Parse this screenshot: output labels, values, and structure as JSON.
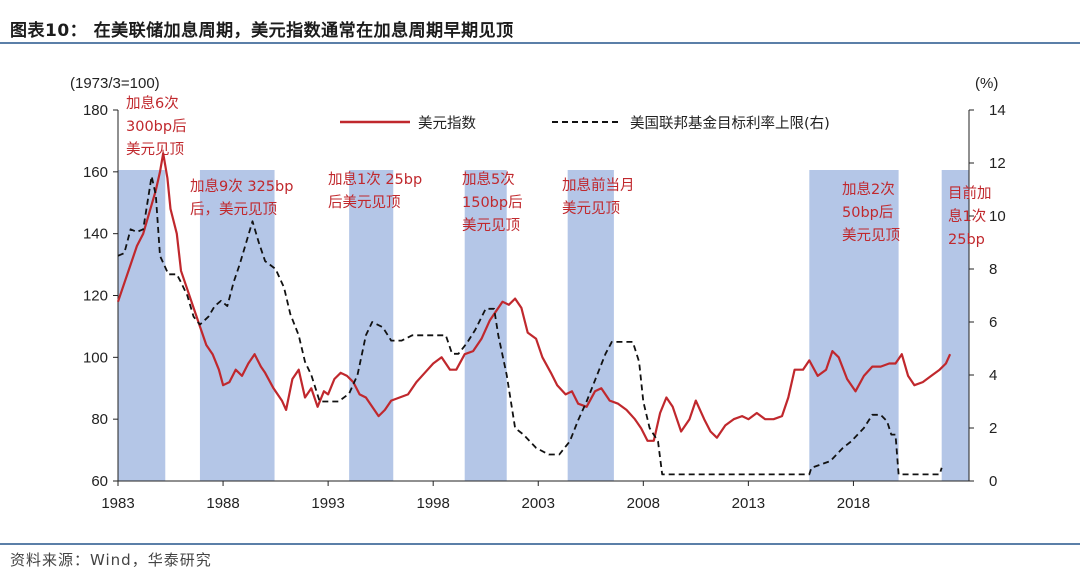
{
  "title": "图表10： 在美联储加息周期，美元指数通常在加息周期早期见顶",
  "source": "资料来源：Wind，华泰研究",
  "chart_data": {
    "type": "line",
    "left_unit": "(1973/3=100)",
    "right_unit": "(%)",
    "y_left": {
      "min": 60,
      "max": 180,
      "ticks": [
        "60",
        "80",
        "100",
        "120",
        "140",
        "160",
        "180"
      ]
    },
    "y_right": {
      "min": 0,
      "max": 14,
      "ticks": [
        "0",
        "2",
        "4",
        "6",
        "8",
        "10",
        "12",
        "14"
      ]
    },
    "x_range": [
      1983,
      2023.5
    ],
    "x_ticks": [
      "1983",
      "1988",
      "1993",
      "1998",
      "2003",
      "2008",
      "2013",
      "2018"
    ],
    "shaded_periods": [
      {
        "start": 1983.0,
        "end": 1985.25
      },
      {
        "start": 1986.9,
        "end": 1990.45
      },
      {
        "start": 1994.0,
        "end": 1996.1
      },
      {
        "start": 1999.5,
        "end": 2001.5
      },
      {
        "start": 2004.4,
        "end": 2006.6
      },
      {
        "start": 2015.9,
        "end": 2020.15
      },
      {
        "start": 2022.2,
        "end": 2023.5
      }
    ],
    "series": [
      {
        "name": "美元指数",
        "axis": "left",
        "color": "#c0282d",
        "style": "solid",
        "points": [
          [
            1983.0,
            118
          ],
          [
            1983.3,
            124
          ],
          [
            1983.6,
            130
          ],
          [
            1983.9,
            136
          ],
          [
            1984.2,
            140
          ],
          [
            1984.5,
            147
          ],
          [
            1984.8,
            154
          ],
          [
            1985.0,
            160
          ],
          [
            1985.15,
            166
          ],
          [
            1985.35,
            158
          ],
          [
            1985.5,
            148
          ],
          [
            1985.8,
            140
          ],
          [
            1986.0,
            128
          ],
          [
            1986.3,
            122
          ],
          [
            1986.6,
            116
          ],
          [
            1986.9,
            110
          ],
          [
            1987.2,
            104
          ],
          [
            1987.5,
            101
          ],
          [
            1987.8,
            96
          ],
          [
            1988.0,
            91
          ],
          [
            1988.3,
            92
          ],
          [
            1988.6,
            96
          ],
          [
            1988.9,
            94
          ],
          [
            1989.2,
            98
          ],
          [
            1989.5,
            101
          ],
          [
            1989.8,
            97
          ],
          [
            1990.0,
            95
          ],
          [
            1990.4,
            90
          ],
          [
            1990.8,
            86
          ],
          [
            1991.0,
            83
          ],
          [
            1991.3,
            93
          ],
          [
            1991.6,
            96
          ],
          [
            1991.9,
            87
          ],
          [
            1992.2,
            90
          ],
          [
            1992.5,
            84
          ],
          [
            1992.8,
            89
          ],
          [
            1993.0,
            88
          ],
          [
            1993.3,
            93
          ],
          [
            1993.6,
            95
          ],
          [
            1993.9,
            94
          ],
          [
            1994.2,
            92
          ],
          [
            1994.5,
            88
          ],
          [
            1994.8,
            87
          ],
          [
            1995.1,
            84
          ],
          [
            1995.4,
            81
          ],
          [
            1995.7,
            83
          ],
          [
            1996.0,
            86
          ],
          [
            1996.4,
            87
          ],
          [
            1996.8,
            88
          ],
          [
            1997.2,
            92
          ],
          [
            1997.6,
            95
          ],
          [
            1998.0,
            98
          ],
          [
            1998.4,
            100
          ],
          [
            1998.8,
            96
          ],
          [
            1999.1,
            96
          ],
          [
            1999.5,
            101
          ],
          [
            1999.9,
            102
          ],
          [
            2000.3,
            106
          ],
          [
            2000.7,
            112
          ],
          [
            2001.0,
            115
          ],
          [
            2001.3,
            118
          ],
          [
            2001.6,
            117
          ],
          [
            2001.9,
            119
          ],
          [
            2002.2,
            116
          ],
          [
            2002.5,
            108
          ],
          [
            2002.9,
            106
          ],
          [
            2003.2,
            100
          ],
          [
            2003.6,
            95
          ],
          [
            2003.9,
            91
          ],
          [
            2004.3,
            88
          ],
          [
            2004.6,
            89
          ],
          [
            2004.9,
            85
          ],
          [
            2005.3,
            84
          ],
          [
            2005.7,
            89
          ],
          [
            2006.0,
            90
          ],
          [
            2006.4,
            86
          ],
          [
            2006.8,
            85
          ],
          [
            2007.2,
            83
          ],
          [
            2007.6,
            80
          ],
          [
            2007.9,
            77
          ],
          [
            2008.2,
            73
          ],
          [
            2008.5,
            73
          ],
          [
            2008.8,
            82
          ],
          [
            2009.1,
            87
          ],
          [
            2009.4,
            84
          ],
          [
            2009.8,
            76
          ],
          [
            2010.2,
            80
          ],
          [
            2010.5,
            86
          ],
          [
            2010.9,
            80
          ],
          [
            2011.2,
            76
          ],
          [
            2011.5,
            74
          ],
          [
            2011.9,
            78
          ],
          [
            2012.3,
            80
          ],
          [
            2012.7,
            81
          ],
          [
            2013.0,
            80
          ],
          [
            2013.4,
            82
          ],
          [
            2013.8,
            80
          ],
          [
            2014.2,
            80
          ],
          [
            2014.6,
            81
          ],
          [
            2014.9,
            87
          ],
          [
            2015.2,
            96
          ],
          [
            2015.6,
            96
          ],
          [
            2015.9,
            99
          ],
          [
            2016.3,
            94
          ],
          [
            2016.7,
            96
          ],
          [
            2017.0,
            102
          ],
          [
            2017.3,
            100
          ],
          [
            2017.7,
            93
          ],
          [
            2018.1,
            89
          ],
          [
            2018.5,
            94
          ],
          [
            2018.9,
            97
          ],
          [
            2019.3,
            97
          ],
          [
            2019.7,
            98
          ],
          [
            2020.0,
            98
          ],
          [
            2020.3,
            101
          ],
          [
            2020.6,
            94
          ],
          [
            2020.9,
            91
          ],
          [
            2021.3,
            92
          ],
          [
            2021.7,
            94
          ],
          [
            2022.1,
            96
          ],
          [
            2022.4,
            98
          ],
          [
            2022.6,
            101
          ]
        ]
      },
      {
        "name": "美国联邦基金目标利率上限(右)",
        "axis": "right",
        "color": "#111111",
        "style": "dashed",
        "points": [
          [
            1983.0,
            8.5
          ],
          [
            1983.3,
            8.6
          ],
          [
            1983.6,
            9.5
          ],
          [
            1983.9,
            9.4
          ],
          [
            1984.2,
            9.5
          ],
          [
            1984.4,
            10.5
          ],
          [
            1984.6,
            11.5
          ],
          [
            1984.8,
            10.8
          ],
          [
            1985.0,
            8.5
          ],
          [
            1985.4,
            7.8
          ],
          [
            1985.8,
            7.8
          ],
          [
            1986.0,
            7.5
          ],
          [
            1986.3,
            7.0
          ],
          [
            1986.6,
            6.2
          ],
          [
            1986.9,
            5.9
          ],
          [
            1987.3,
            6.2
          ],
          [
            1987.6,
            6.6
          ],
          [
            1987.9,
            6.8
          ],
          [
            1988.2,
            6.6
          ],
          [
            1988.5,
            7.5
          ],
          [
            1988.8,
            8.2
          ],
          [
            1989.1,
            9.0
          ],
          [
            1989.4,
            9.8
          ],
          [
            1989.7,
            9.0
          ],
          [
            1990.0,
            8.3
          ],
          [
            1990.5,
            8.0
          ],
          [
            1990.9,
            7.3
          ],
          [
            1991.2,
            6.3
          ],
          [
            1991.6,
            5.5
          ],
          [
            1991.9,
            4.5
          ],
          [
            1992.2,
            4.0
          ],
          [
            1992.6,
            3.0
          ],
          [
            1993.0,
            3.0
          ],
          [
            1993.5,
            3.0
          ],
          [
            1994.0,
            3.3
          ],
          [
            1994.4,
            4.0
          ],
          [
            1994.8,
            5.5
          ],
          [
            1995.1,
            6.0
          ],
          [
            1995.6,
            5.8
          ],
          [
            1996.0,
            5.3
          ],
          [
            1996.5,
            5.3
          ],
          [
            1997.0,
            5.5
          ],
          [
            1997.5,
            5.5
          ],
          [
            1998.0,
            5.5
          ],
          [
            1998.6,
            5.5
          ],
          [
            1998.9,
            4.8
          ],
          [
            1999.2,
            4.8
          ],
          [
            1999.6,
            5.2
          ],
          [
            2000.0,
            5.7
          ],
          [
            2000.5,
            6.5
          ],
          [
            2000.9,
            6.5
          ],
          [
            2001.1,
            5.5
          ],
          [
            2001.5,
            4.0
          ],
          [
            2001.9,
            2.0
          ],
          [
            2002.3,
            1.75
          ],
          [
            2002.9,
            1.25
          ],
          [
            2003.5,
            1.0
          ],
          [
            2004.0,
            1.0
          ],
          [
            2004.5,
            1.5
          ],
          [
            2004.9,
            2.3
          ],
          [
            2005.3,
            3.0
          ],
          [
            2005.8,
            4.0
          ],
          [
            2006.2,
            4.8
          ],
          [
            2006.5,
            5.25
          ],
          [
            2007.0,
            5.25
          ],
          [
            2007.5,
            5.25
          ],
          [
            2007.8,
            4.5
          ],
          [
            2008.0,
            3.0
          ],
          [
            2008.3,
            2.0
          ],
          [
            2008.7,
            1.5
          ],
          [
            2008.9,
            0.25
          ],
          [
            2010.0,
            0.25
          ],
          [
            2012.0,
            0.25
          ],
          [
            2014.0,
            0.25
          ],
          [
            2015.9,
            0.25
          ],
          [
            2016.0,
            0.5
          ],
          [
            2016.9,
            0.75
          ],
          [
            2017.2,
            1.0
          ],
          [
            2017.5,
            1.25
          ],
          [
            2017.9,
            1.5
          ],
          [
            2018.2,
            1.75
          ],
          [
            2018.5,
            2.0
          ],
          [
            2018.9,
            2.5
          ],
          [
            2019.3,
            2.5
          ],
          [
            2019.6,
            2.25
          ],
          [
            2019.8,
            1.75
          ],
          [
            2020.0,
            1.75
          ],
          [
            2020.15,
            0.25
          ],
          [
            2021.0,
            0.25
          ],
          [
            2022.1,
            0.25
          ],
          [
            2022.2,
            0.5
          ]
        ]
      }
    ],
    "annotations": [
      {
        "lines": [
          "加息6次",
          "300bp后",
          "美元见顶"
        ]
      },
      {
        "lines": [
          "加息9次 325bp",
          "后，美元见顶"
        ]
      },
      {
        "lines": [
          "加息1次 25bp",
          "后美元见顶"
        ]
      },
      {
        "lines": [
          "加息5次",
          "150bp后",
          "美元见顶"
        ]
      },
      {
        "lines": [
          "加息前当月",
          "美元见顶"
        ]
      },
      {
        "lines": [
          "加息2次",
          "50bp后",
          "美元见顶"
        ]
      },
      {
        "lines": [
          "目前加",
          "息1次",
          "25bp"
        ]
      }
    ]
  }
}
